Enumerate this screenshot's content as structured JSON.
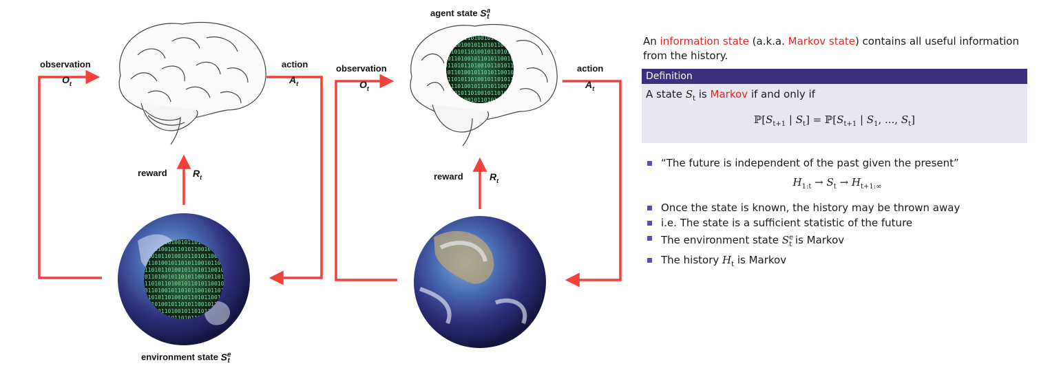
{
  "left_diagram": {
    "observation_label": "observation",
    "observation_symbol": "O",
    "action_label": "action",
    "action_symbol": "A",
    "reward_label": "reward",
    "reward_symbol": "R",
    "environment_label": "environment state",
    "environment_symbol": "S",
    "binary_text": "0110101101001011010110010110101101001011010110"
  },
  "right_diagram": {
    "agent_state_label": "agent state",
    "agent_state_symbol": "S",
    "observation_label": "observation",
    "observation_symbol": "O",
    "action_label": "action",
    "action_symbol": "A",
    "reward_label": "reward",
    "reward_symbol": "R"
  },
  "text_panel": {
    "intro_prefix": "An ",
    "intro_term1": "information state",
    "intro_mid": " (a.k.a. ",
    "intro_term2": "Markov state",
    "intro_suffix": ") contains all useful information from the history.",
    "definition_header": "Definition",
    "definition_prefix": "A state ",
    "definition_term": "Markov",
    "definition_suffix": " if and only if",
    "formula_left": "ℙ[S",
    "bullets": [
      "“The future is independent of the past given the present”",
      "Once the state is known, the history may be thrown away",
      "i.e. The state is a sufficient statistic of the future",
      "The environment state",
      "The history"
    ]
  },
  "colors": {
    "arrow": "#f0413a",
    "definition_header_bg": "#3b2f7e",
    "definition_body_bg": "#e8e6f1",
    "highlight": "#e8231e",
    "bullet": "#5a4fa8"
  }
}
